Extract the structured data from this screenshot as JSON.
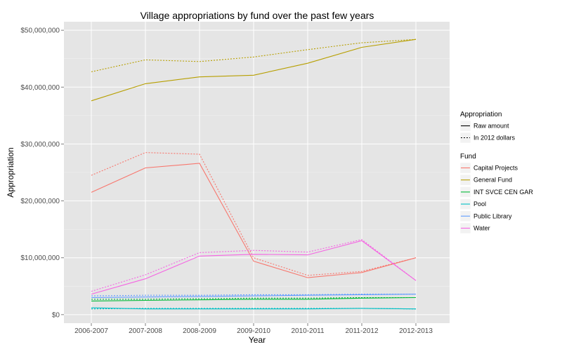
{
  "chart_data": {
    "type": "line",
    "title": "Village appropriations by fund over the past few years",
    "xlabel": "Year",
    "ylabel": "Appropriation",
    "categories": [
      "2006-2007",
      "2007-2008",
      "2008-2009",
      "2009-2010",
      "2010-2011",
      "2011-2012",
      "2012-2013"
    ],
    "ylim": [
      -1500000,
      51500000
    ],
    "yticks": [
      0,
      10000000,
      20000000,
      30000000,
      40000000,
      50000000
    ],
    "ytick_labels": [
      "$0",
      "$10,000,000",
      "$20,000,000",
      "$30,000,000",
      "$40,000,000",
      "$50,000,000"
    ],
    "grid": true,
    "legend_position": "right",
    "legend": {
      "linetype_title": "Appropriation",
      "linetypes": [
        {
          "key": "raw",
          "label": "Raw amount",
          "dash": "solid"
        },
        {
          "key": "adj",
          "label": "In 2012 dollars",
          "dash": "dotted"
        }
      ],
      "fund_title": "Fund"
    },
    "series": [
      {
        "name": "Capital Projects",
        "color": "#F8766D",
        "raw": [
          21500000,
          25800000,
          26600000,
          9400000,
          6500000,
          7400000,
          10000000
        ],
        "adj": [
          24500000,
          28500000,
          28200000,
          10000000,
          6900000,
          7600000,
          10000000
        ]
      },
      {
        "name": "General Fund",
        "color": "#B79F00",
        "raw": [
          37600000,
          40600000,
          41800000,
          42100000,
          44200000,
          47000000,
          48400000
        ],
        "adj": [
          42700000,
          44800000,
          44500000,
          45300000,
          46600000,
          47800000,
          48400000
        ]
      },
      {
        "name": "INT SVCE CEN GAR",
        "color": "#00BA38",
        "raw": [
          2400000,
          2500000,
          2600000,
          2700000,
          2700000,
          2900000,
          3000000
        ],
        "adj": [
          2700000,
          2700000,
          2800000,
          2900000,
          2900000,
          3000000,
          3000000
        ]
      },
      {
        "name": "Pool",
        "color": "#00BFC4",
        "raw": [
          1200000,
          1000000,
          1000000,
          1000000,
          1000000,
          1100000,
          1000000
        ],
        "adj": [
          1000000,
          1100000,
          1100000,
          1100000,
          1100000,
          1100000,
          1000000
        ]
      },
      {
        "name": "Public Library",
        "color": "#619CFF",
        "raw": [
          3000000,
          3100000,
          3200000,
          3300000,
          3400000,
          3500000,
          3600000
        ],
        "adj": [
          3300000,
          3400000,
          3400000,
          3500000,
          3500000,
          3600000,
          3600000
        ]
      },
      {
        "name": "Water",
        "color": "#F564E3",
        "raw": [
          3600000,
          6300000,
          10300000,
          10600000,
          10500000,
          13000000,
          6000000
        ],
        "adj": [
          4100000,
          7000000,
          10900000,
          11300000,
          11000000,
          13200000,
          6000000
        ]
      }
    ]
  }
}
